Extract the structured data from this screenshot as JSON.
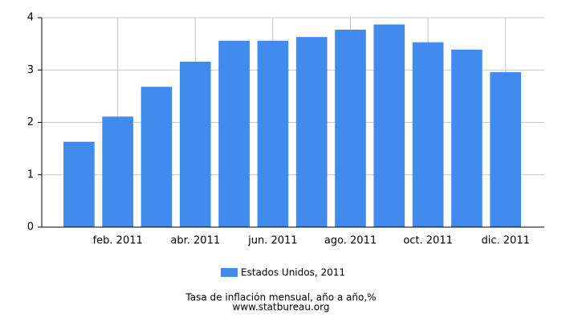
{
  "chart_data": {
    "type": "bar",
    "categories": [
      null,
      "feb. 2011",
      null,
      "abr. 2011",
      null,
      "jun. 2011",
      null,
      "ago. 2011",
      null,
      "oct. 2011",
      null,
      "dic. 2011"
    ],
    "series": [
      {
        "name": "Estados Unidos, 2011",
        "color": "#418bef",
        "values": [
          1.63,
          2.11,
          2.68,
          3.16,
          3.56,
          3.56,
          3.63,
          3.77,
          3.87,
          3.53,
          3.39,
          2.96
        ]
      }
    ],
    "ylim": [
      0,
      4
    ],
    "yticks": [
      0,
      1,
      2,
      3,
      4
    ],
    "grid": true,
    "caption": "Tasa de inflación mensual, año a año,%",
    "source": "www.statbureau.org"
  }
}
